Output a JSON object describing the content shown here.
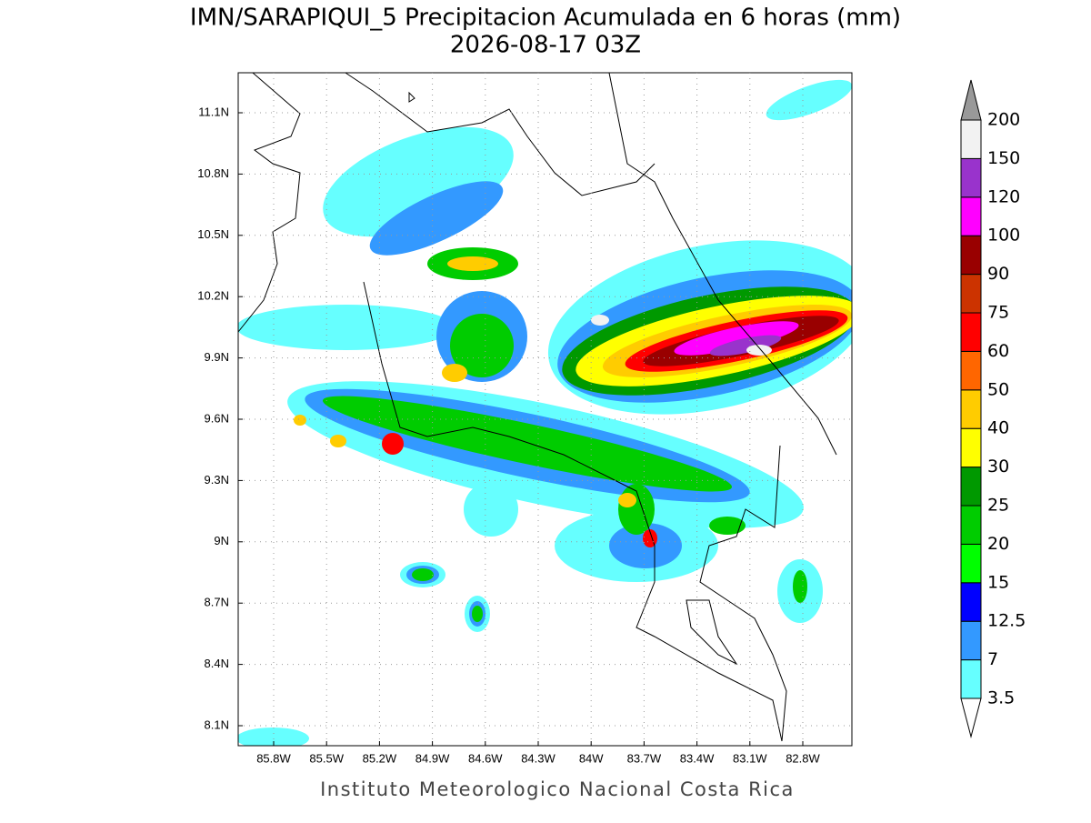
{
  "title": "IMN/SARAPIQUI_5 Precipitacion Acumulada en 6 horas (mm)",
  "subtitle": "2026-08-17 03Z",
  "x_labels": [
    "85.8W",
    "85.5W",
    "85.2W",
    "84.9W",
    "84.6W",
    "84.3W",
    "84W",
    "83.7W",
    "83.4W",
    "83.1W",
    "82.8W"
  ],
  "y_labels": [
    "11.1N",
    "10.8N",
    "10.5N",
    "10.2N",
    "9.9N",
    "9.6N",
    "9.3N",
    "9N",
    "8.7N",
    "8.4N",
    "8.1N"
  ],
  "colorbar": {
    "labels": [
      "3.5",
      "7",
      "12.5",
      "15",
      "20",
      "25",
      "30",
      "40",
      "50",
      "60",
      "75",
      "90",
      "100",
      "120",
      "150",
      "200"
    ],
    "colors": [
      "#66ffff",
      "#3399ff",
      "#0000ff",
      "#00ff00",
      "#00cc00",
      "#009900",
      "#ffff00",
      "#ffcc00",
      "#ff6600",
      "#ff0000",
      "#cc3300",
      "#990000",
      "#ff00ff",
      "#9933cc",
      "#f2f2f2"
    ]
  },
  "footer": "Instituto Meteorologico Nacional Costa Rica"
}
